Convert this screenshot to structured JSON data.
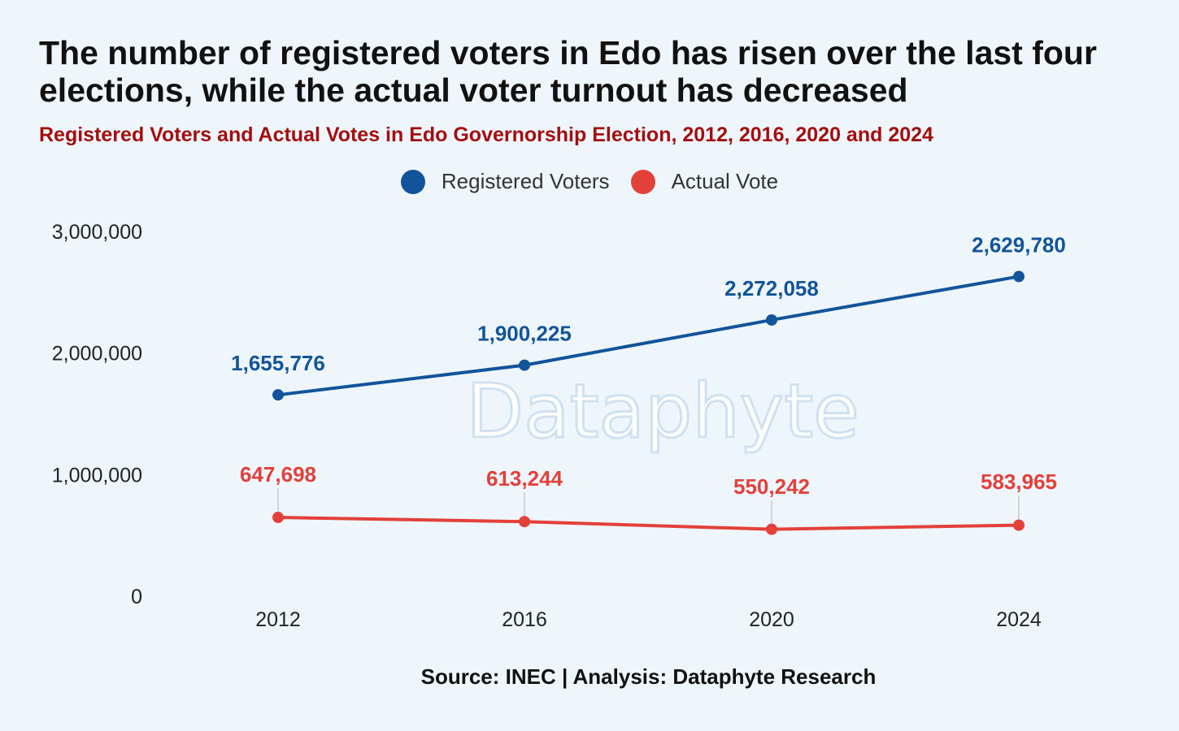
{
  "chart_data": {
    "type": "line",
    "title": "The number of registered voters in Edo has risen over the last four elections, while the actual voter turnout has decreased",
    "subtitle": "Registered Voters and Actual Votes in Edo Governorship Election, 2012, 2016, 2020 and 2024",
    "categories": [
      "2012",
      "2016",
      "2020",
      "2024"
    ],
    "series": [
      {
        "name": "Registered Voters",
        "color": "#12549a",
        "values": [
          1655776,
          1900225,
          2272058,
          2629780
        ],
        "labels": [
          "1,655,776",
          "1,900,225",
          "2,272,058",
          "2,629,780"
        ]
      },
      {
        "name": "Actual Vote",
        "color": "#e3403a",
        "values": [
          647698,
          613244,
          550242,
          583965
        ],
        "labels": [
          "647,698",
          "613,244",
          "550,242",
          "583,965"
        ]
      }
    ],
    "ylim": [
      0,
      3000000
    ],
    "y_ticks": [
      0,
      1000000,
      2000000,
      3000000
    ],
    "y_tick_labels": [
      "0",
      "1,000,000",
      "2,000,000",
      "3,000,000"
    ],
    "grid": false,
    "legend_position": "top-center",
    "watermark": "Dataphyte"
  },
  "source": "Source: INEC | Analysis: Dataphyte Research"
}
